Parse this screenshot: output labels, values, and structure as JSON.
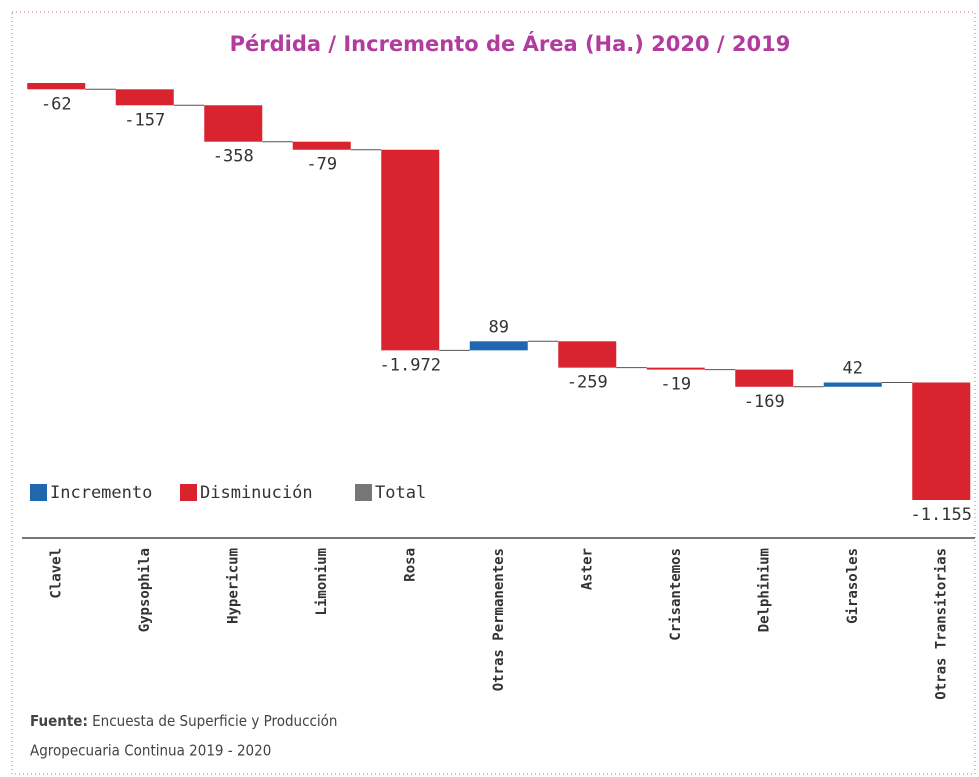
{
  "chart_data": {
    "type": "waterfall",
    "title": "Pérdida / Incremento de Área (Ha.) 2020 / 2019",
    "categories": [
      "Clavel",
      "Gypsophila",
      "Hypericum",
      "Limonium",
      "Rosa",
      "Otras Permanentes",
      "Aster",
      "Crisantemos",
      "Delphinium",
      "Girasoles",
      "Otras Transitorias"
    ],
    "values": [
      -62,
      -157,
      -358,
      -79,
      -1972,
      89,
      -259,
      -19,
      -169,
      42,
      -1155
    ],
    "value_labels": [
      "-62",
      "-157",
      "-358",
      "-79",
      "-1.972",
      "89",
      "-259",
      "-19",
      "-169",
      "42",
      "-1.155"
    ],
    "legend": [
      {
        "name": "Incremento",
        "color": "#1f68b0"
      },
      {
        "name": "Disminución",
        "color": "#d9232e"
      },
      {
        "name": "Total",
        "color": "#777777"
      }
    ],
    "source": {
      "label": "Fuente:",
      "lines": [
        "Encuesta de Superficie y Producción",
        "Agropecuaria Continua 2019 - 2020"
      ]
    }
  }
}
